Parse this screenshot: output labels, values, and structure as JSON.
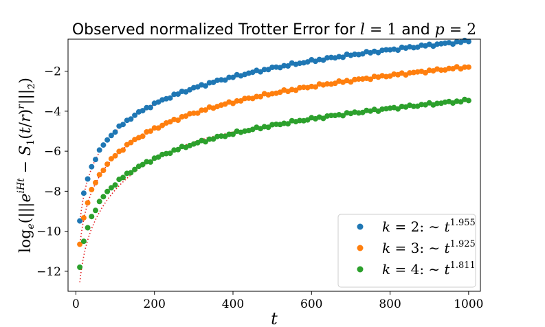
{
  "chart_data": {
    "type": "scatter",
    "title": "Observed normalized Trotter Error for l = 1 and p = 2",
    "title_parts": {
      "prefix": "Observed normalized Trotter Error for ",
      "var1": "l",
      "eq1": " = 1",
      "mid": " and ",
      "var2": "p",
      "eq2": " = 2"
    },
    "xlabel": "t",
    "ylabel": "log_e(|||e^{iHt} − S_1(t/r)^r|||_2̃)",
    "xlim": [
      -20,
      1030
    ],
    "ylim": [
      -13.0,
      -0.4
    ],
    "xticks": [
      0,
      200,
      400,
      600,
      800,
      1000
    ],
    "yticks": [
      -12,
      -10,
      -8,
      -6,
      -4,
      -2
    ],
    "ytick_labels": [
      "−12",
      "−10",
      "−8",
      "−6",
      "−4",
      "−2"
    ],
    "grid": false,
    "legend_position": "bottom-right",
    "fit_style": "dotted",
    "fit_color": "#e41a1c",
    "series": [
      {
        "name": "k = 2: ~ t^1.955",
        "legend": {
          "k": "k = 2:",
          "base": "∼ t",
          "exp": "1.955"
        },
        "color": "#1f77b4",
        "slope": 1.955,
        "anchor": {
          "t": 10,
          "value": -9.5
        },
        "fit_offset": -0.1
      },
      {
        "name": "k = 3: ~ t^1.925",
        "legend": {
          "k": "k = 3:",
          "base": "∼ t",
          "exp": "1.925"
        },
        "color": "#ff7f0e",
        "slope": 1.925,
        "anchor": {
          "t": 10,
          "value": -10.65
        },
        "fit_offset": -0.1
      },
      {
        "name": "k = 4: ~ t^1.811",
        "legend": {
          "k": "k = 4:",
          "base": "∼ t",
          "exp": "1.811"
        },
        "color": "#2ca02c",
        "slope": 1.811,
        "anchor": {
          "t": 10,
          "value": -11.8
        },
        "fit_offset": -0.75
      }
    ],
    "t_start": 10,
    "t_end": 1000,
    "t_step": 10
  }
}
